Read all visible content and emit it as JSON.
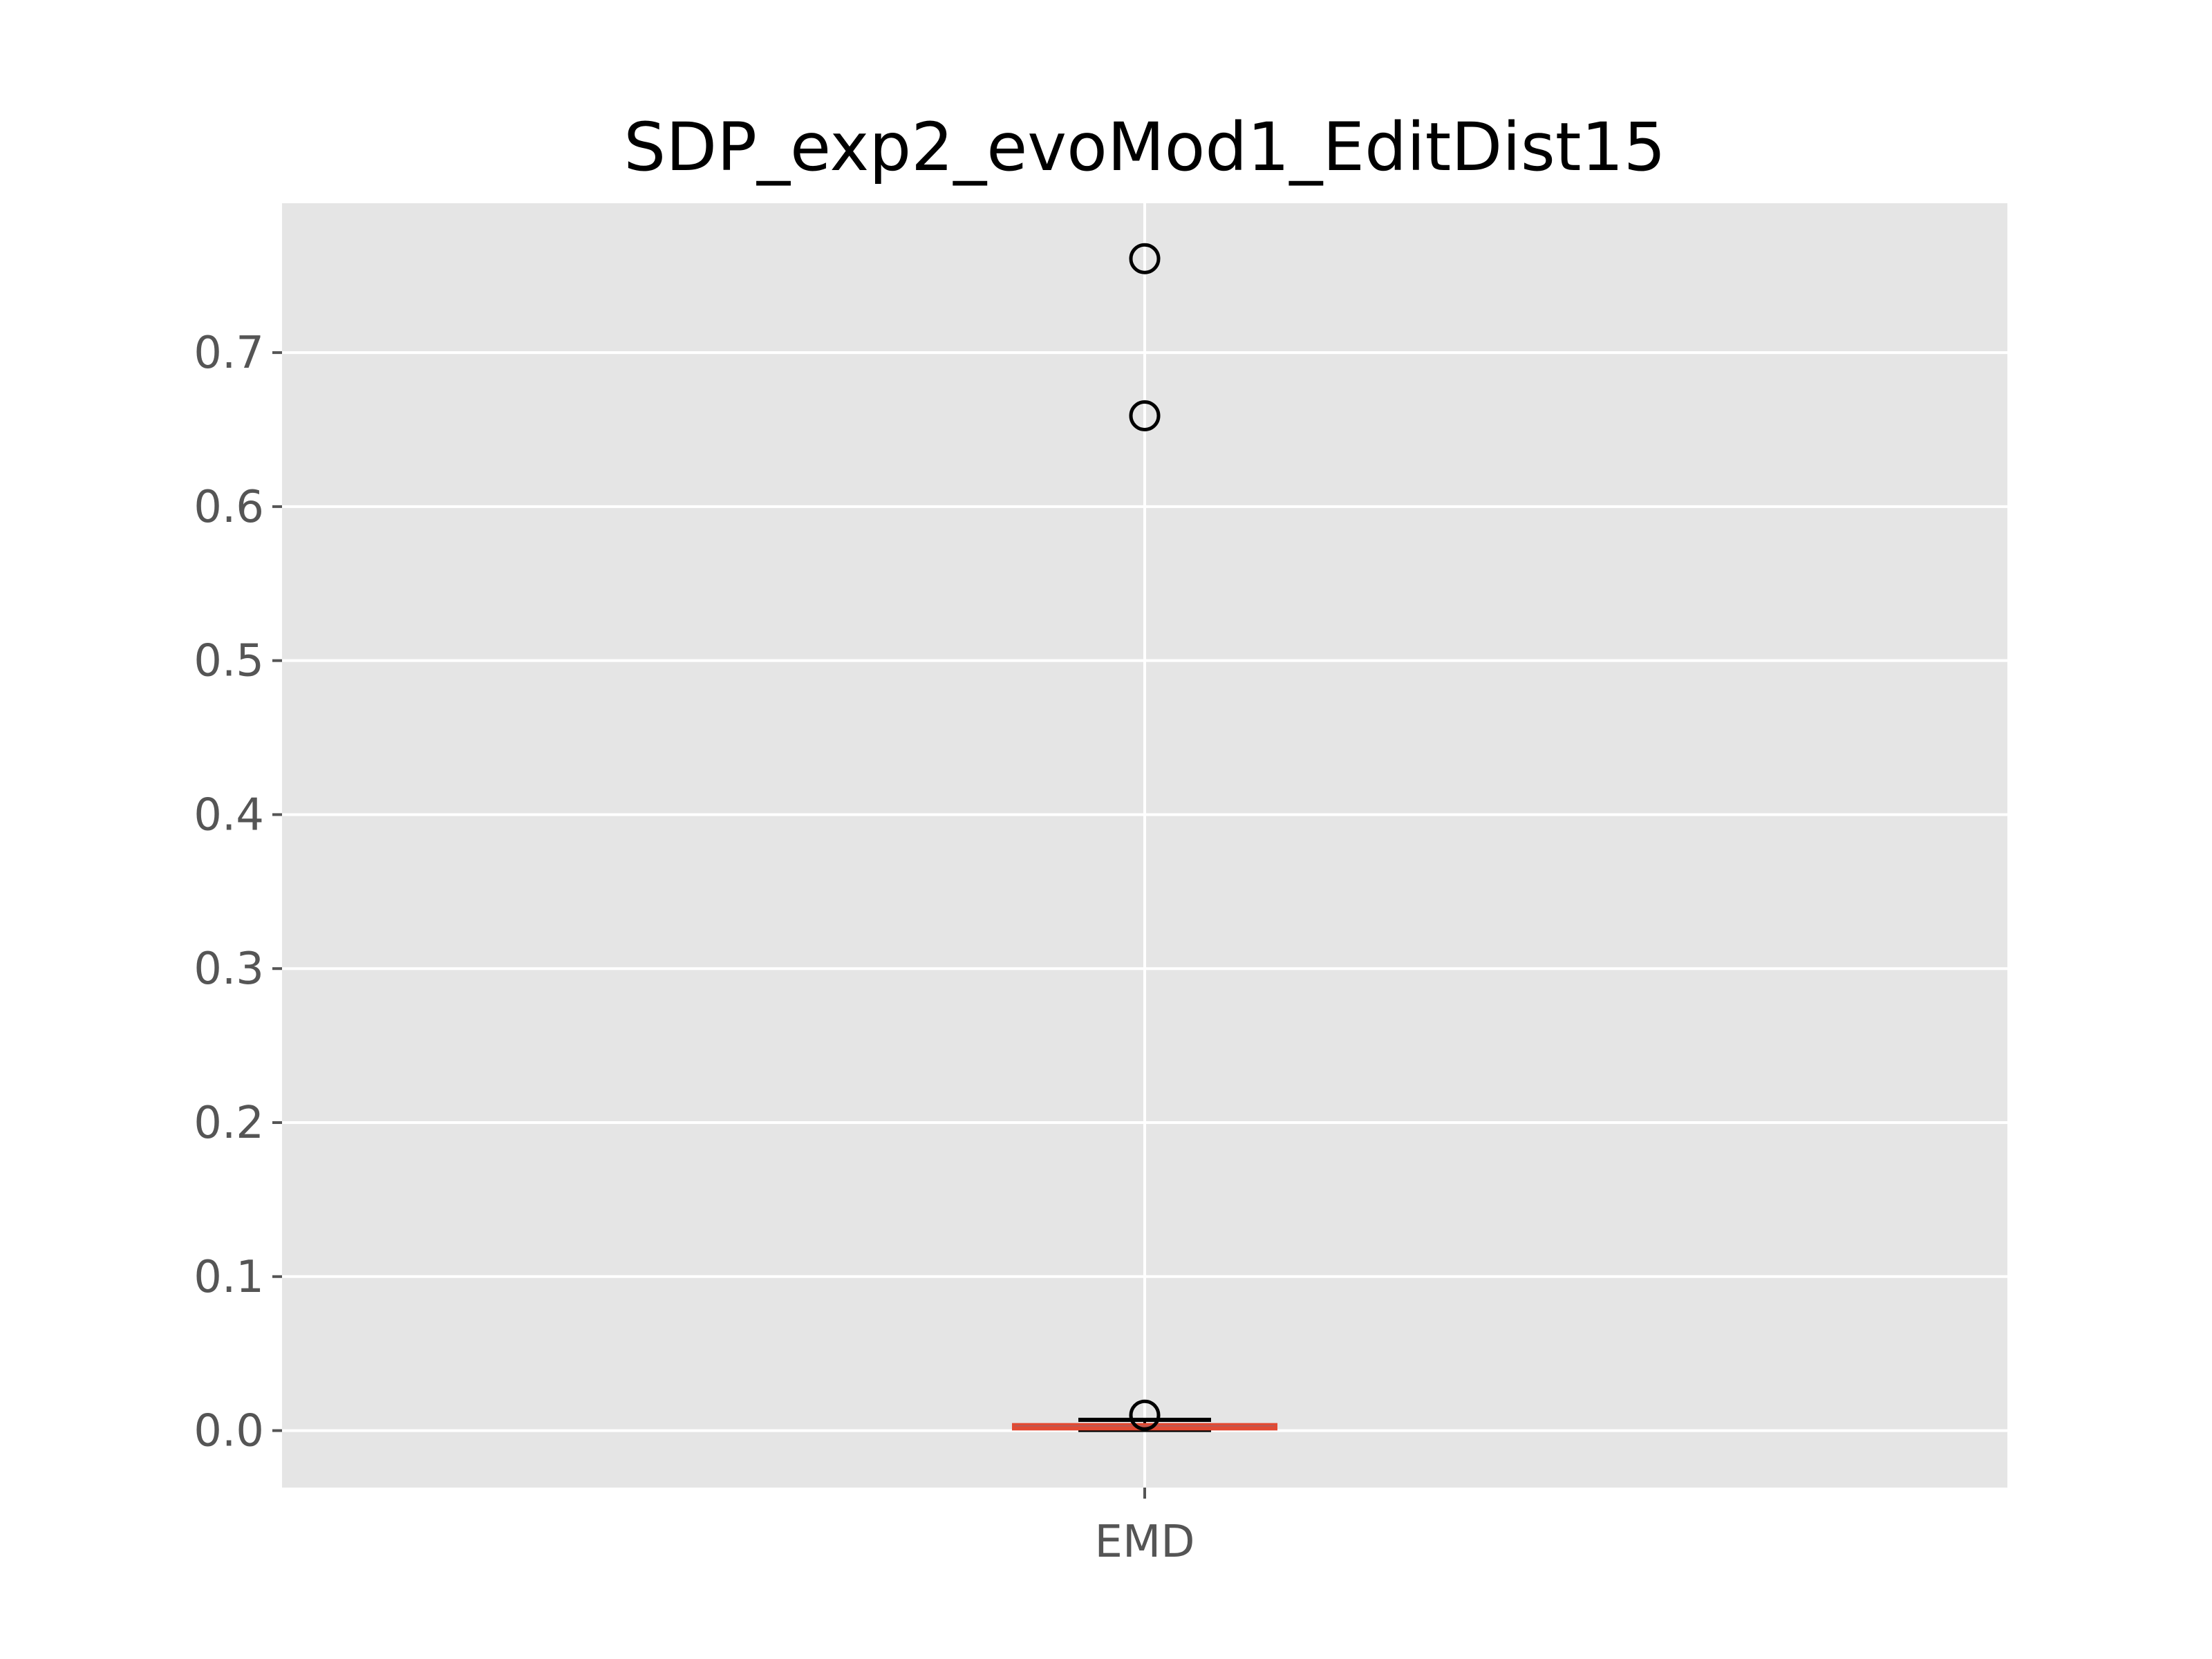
{
  "chart_data": {
    "type": "box",
    "title": "SDP_exp2_evoMod1_EditDist15",
    "xlabel": "",
    "ylabel": "",
    "categories": [
      "EMD"
    ],
    "ylim": [
      -0.037,
      0.797
    ],
    "yticks": [
      0.0,
      0.1,
      0.2,
      0.3,
      0.4,
      0.5,
      0.6,
      0.7
    ],
    "ytick_labels": [
      "0.0",
      "0.1",
      "0.2",
      "0.3",
      "0.4",
      "0.5",
      "0.6",
      "0.7"
    ],
    "grid": true,
    "boxes": [
      {
        "category": "EMD",
        "whisker_low": 0.0,
        "q1": 0.001,
        "median": 0.002,
        "q3": 0.004,
        "whisker_high": 0.007,
        "outliers": [
          0.01,
          0.659,
          0.761
        ]
      }
    ],
    "colors": {
      "background": "#e5e5e5",
      "grid": "#ffffff",
      "box_fill": "#348abd",
      "box_edge": "#e24a33",
      "median": "#e24a33",
      "whisker": "#000000",
      "outlier": "#000000"
    }
  }
}
